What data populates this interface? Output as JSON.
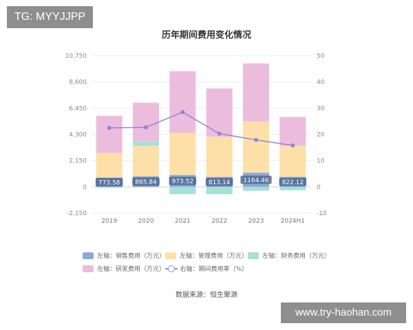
{
  "watermarks": {
    "top_left": "TG: MYYJJPP",
    "bottom_right": "www.try-haohan.com"
  },
  "source_label": "数据来源：恒生聚源",
  "chart_data": {
    "type": "bar",
    "title": "历年期间费用变化情况",
    "categories": [
      "2019",
      "2020",
      "2021",
      "2022",
      "2023",
      "2024H1"
    ],
    "left_axis": {
      "ylim": [
        -2150,
        10750
      ],
      "ticks": [
        "10,750",
        "8,600",
        "6,450",
        "4,300",
        "2,150",
        "0",
        "-2,150"
      ],
      "tick_values": [
        10750,
        8600,
        6450,
        4300,
        2150,
        0,
        -2150
      ]
    },
    "right_axis": {
      "ylim": [
        -10,
        50
      ],
      "ticks": [
        "50",
        "40",
        "30",
        "20",
        "10",
        "0",
        "-10"
      ],
      "tick_values": [
        50,
        40,
        30,
        20,
        10,
        0,
        -10
      ]
    },
    "series": [
      {
        "name": "左轴：销售费用（万元）",
        "kind": "bar",
        "stack": "main",
        "color": "#8caad6",
        "values": [
          773.58,
          865.84,
          973.52,
          813.14,
          1164.46,
          822.12
        ],
        "labels": [
          "773.58",
          "865.84",
          "973.52",
          "813.14",
          "1164.46",
          "822.12"
        ]
      },
      {
        "name": "左轴：管理费用（万元）",
        "kind": "bar",
        "stack": "main",
        "color": "#fde0a8",
        "values": [
          2000,
          2500,
          3450,
          3300,
          4200,
          2550
        ]
      },
      {
        "name": "左轴：财务费用（万元）",
        "kind": "bar",
        "stack": "main",
        "color": "#a6e0d8",
        "values": [
          -80,
          380,
          -600,
          -600,
          -320,
          -280
        ]
      },
      {
        "name": "左轴：研发费用（万元）",
        "kind": "bar",
        "stack": "main",
        "color": "#ecbcdd",
        "values": [
          3050,
          3150,
          5050,
          3950,
          4750,
          2350
        ]
      },
      {
        "name": "右轴：期间费用率（%）",
        "kind": "line",
        "axis": "right",
        "color": "#8e87d6",
        "values": [
          22.5,
          22.7,
          28.5,
          20.3,
          17.9,
          15.8
        ]
      }
    ],
    "grid": true,
    "legend_position": "bottom"
  }
}
